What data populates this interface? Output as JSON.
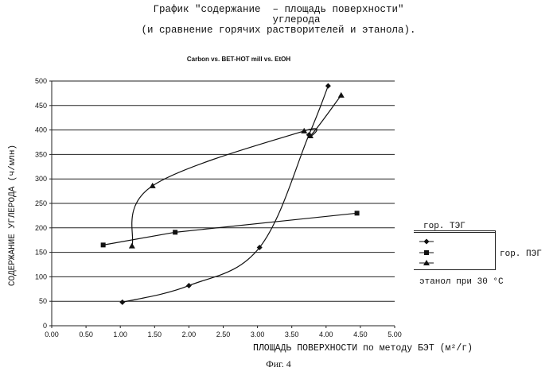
{
  "header": {
    "title_ru": "График \"содержание  – площадь поверхности\"\n      углерода\n(и сравнение горячих растворителей и этанола).",
    "caption": "Фиг. 4"
  },
  "chart_data": {
    "type": "line",
    "title": "Carbon vs. BET-HOT mill vs. EtOH",
    "xlabel": "ПЛОЩАДЬ ПОВЕРХНОСТИ по методу БЭТ (м²/г)",
    "ylabel": "СОДЕРЖАНИЕ УГЛЕРОДА (ч/млн)",
    "xlim": [
      0,
      5
    ],
    "ylim": [
      0,
      500
    ],
    "x_ticks": [
      "0.00",
      "0.50",
      "1.00",
      "1.50",
      "2.00",
      "2.50",
      "3.00",
      "3.50",
      "4.00",
      "4.50",
      "5.00"
    ],
    "y_ticks": [
      "0",
      "50",
      "100",
      "150",
      "200",
      "250",
      "300",
      "350",
      "400",
      "450",
      "500"
    ],
    "grid": "horizontal",
    "series": [
      {
        "name": "гор. ТЭГ",
        "marker": "diamond",
        "points": [
          [
            1.03,
            48
          ],
          [
            2.0,
            82
          ],
          [
            3.03,
            160
          ],
          [
            3.75,
            390
          ],
          [
            4.03,
            490
          ]
        ]
      },
      {
        "name": "гор. ПЭГ",
        "marker": "square",
        "points": [
          [
            0.75,
            165
          ],
          [
            1.8,
            191
          ],
          [
            4.45,
            230
          ]
        ]
      },
      {
        "name": "этанол при 30 °C",
        "marker": "triangle",
        "points": [
          [
            1.17,
            163
          ],
          [
            1.47,
            286
          ],
          [
            3.68,
            398
          ],
          [
            3.77,
            388
          ],
          [
            4.22,
            471
          ]
        ]
      }
    ],
    "legend": {
      "title": "гор. ТЭГ",
      "right_label": "гор. ПЭГ",
      "bottom_label": "этанол при 30 °C"
    }
  }
}
